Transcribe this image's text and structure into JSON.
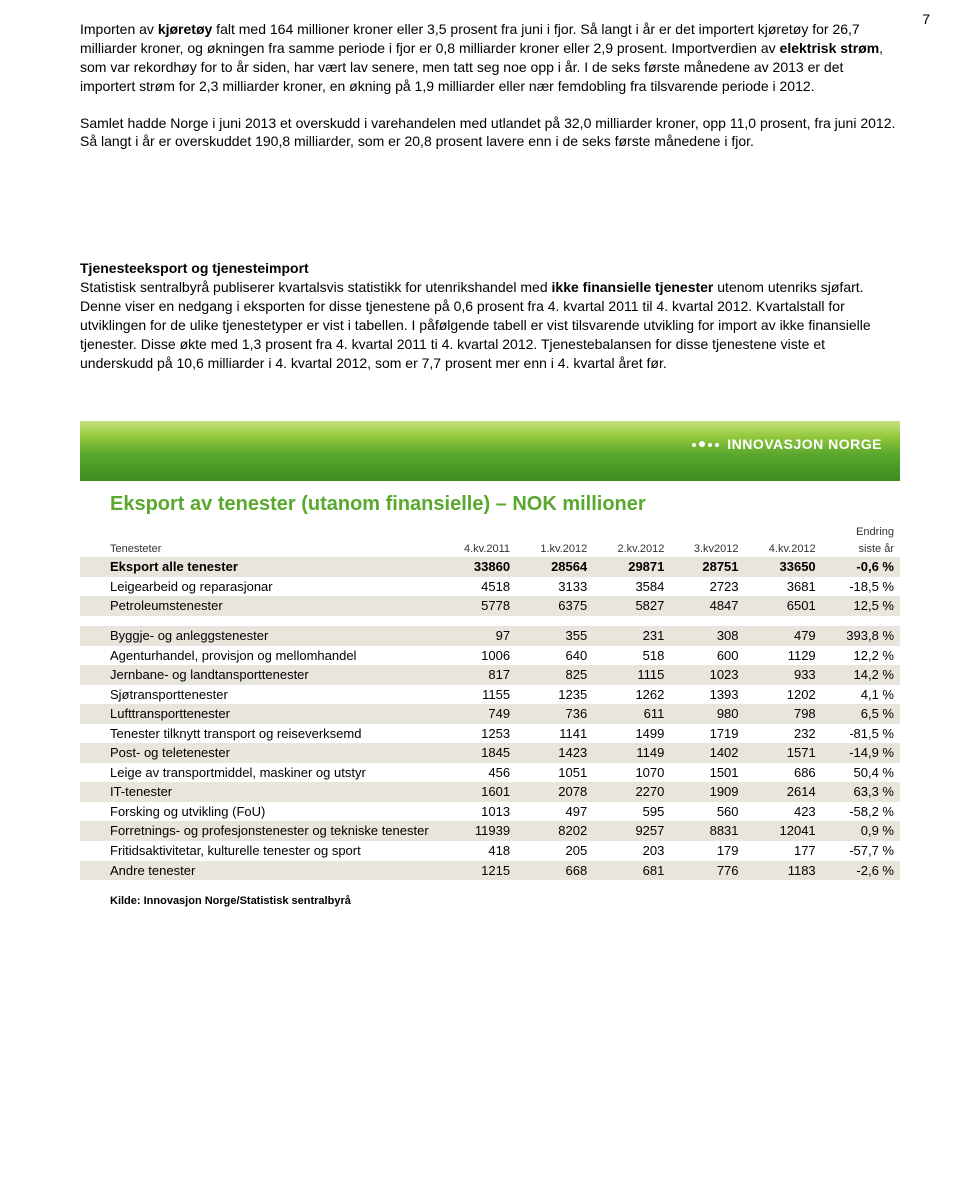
{
  "page_number": "7",
  "paragraphs": {
    "p1_a": "Importen av ",
    "p1_b": "kjøretøy",
    "p1_c": " falt med 164 millioner kroner eller 3,5 prosent fra juni i fjor. Så langt i år er det importert kjøretøy for 26,7 milliarder kroner, og økningen fra samme periode i fjor er 0,8 milliarder kroner eller 2,9 prosent.",
    "p1_d": " Importverdien av ",
    "p1_e": "elektrisk strøm",
    "p1_f": ", som var rekordhøy for to år siden, har vært lav senere, men tatt seg noe opp i år. I de seks første månedene av 2013 er det importert strøm for 2,3 milliarder kroner, en økning på 1,9 milliarder eller nær femdobling fra tilsvarende periode i 2012.",
    "p2": "Samlet hadde Norge i juni 2013 et overskudd i varehandelen med utlandet på 32,0 milliarder kroner, opp 11,0 prosent, fra juni 2012. Så langt i år er overskuddet 190,8 milliarder, som er 20,8 prosent lavere enn i de seks første månedene i fjor.",
    "p3_title": "Tjenesteeksport og tjenesteimport",
    "p3_a": "Statistisk sentralbyrå publiserer kvartalsvis statistikk for utenrikshandel med ",
    "p3_b": "ikke finansielle tjenester",
    "p3_c": " utenom utenriks sjøfart. Denne viser en nedgang i eksporten for disse tjenestene på 0,6 prosent fra 4. kvartal 2011 til 4. kvartal 2012. Kvartalstall for utviklingen for de ulike tjenestetyper er vist i tabellen. I påfølgende tabell er vist tilsvarende utvikling for import av ikke finansielle tjenester. Disse økte med 1,3 prosent fra 4. kvartal 2011 ti 4. kvartal 2012. Tjenestebalansen for disse tjenestene viste et underskudd på 10,6 milliarder i 4. kvartal 2012, som er 7,7 prosent mer enn i 4. kvartal året før."
  },
  "banner_logo": "INNOVASJON NORGE",
  "table": {
    "title": "Eksport av tenester (utanom finansielle) – NOK millioner",
    "header_left": "Tenesteter",
    "header_cols": [
      "4.kv.2011",
      "1.kv.2012",
      "2.kv.2012",
      "3.kv2012",
      "4.kv.2012"
    ],
    "header_change_top": "Endring",
    "header_change_bottom": "siste år",
    "rows": [
      {
        "label": "Eksport alle tenester",
        "v": [
          "33860",
          "28564",
          "29871",
          "28751",
          "33650",
          "-0,6 %"
        ],
        "bold": true,
        "shade": true
      },
      {
        "label": "Leigearbeid og reparasjonar",
        "v": [
          "4518",
          "3133",
          "3584",
          "2723",
          "3681",
          "-18,5 %"
        ],
        "bold": false,
        "shade": false
      },
      {
        "label": "Petroleumstenester",
        "v": [
          "5778",
          "6375",
          "5827",
          "4847",
          "6501",
          "12,5 %"
        ],
        "bold": false,
        "shade": true
      },
      {
        "spacer": true
      },
      {
        "label": "Byggje- og anleggstenester",
        "v": [
          "97",
          "355",
          "231",
          "308",
          "479",
          "393,8 %"
        ],
        "bold": false,
        "shade": true
      },
      {
        "label": "Agenturhandel, provisjon og mellomhandel",
        "v": [
          "1006",
          "640",
          "518",
          "600",
          "1129",
          "12,2 %"
        ],
        "bold": false,
        "shade": false
      },
      {
        "label": "Jernbane- og landtansporttenester",
        "v": [
          "817",
          "825",
          "1115",
          "1023",
          "933",
          "14,2 %"
        ],
        "bold": false,
        "shade": true
      },
      {
        "label": "Sjøtransporttenester",
        "v": [
          "1155",
          "1235",
          "1262",
          "1393",
          "1202",
          "4,1 %"
        ],
        "bold": false,
        "shade": false
      },
      {
        "label": "Lufttransporttenester",
        "v": [
          "749",
          "736",
          "611",
          "980",
          "798",
          "6,5 %"
        ],
        "bold": false,
        "shade": true
      },
      {
        "label": "Tenester tilknytt transport og reiseverksemd",
        "v": [
          "1253",
          "1141",
          "1499",
          "1719",
          "232",
          "-81,5 %"
        ],
        "bold": false,
        "shade": false
      },
      {
        "label": "Post- og teletenester",
        "v": [
          "1845",
          "1423",
          "1149",
          "1402",
          "1571",
          "-14,9 %"
        ],
        "bold": false,
        "shade": true
      },
      {
        "label": "Leige av transportmiddel, maskiner og utstyr",
        "v": [
          "456",
          "1051",
          "1070",
          "1501",
          "686",
          "50,4 %"
        ],
        "bold": false,
        "shade": false
      },
      {
        "label": "IT-tenester",
        "v": [
          "1601",
          "2078",
          "2270",
          "1909",
          "2614",
          "63,3 %"
        ],
        "bold": false,
        "shade": true
      },
      {
        "label": "Forsking og utvikling (FoU)",
        "v": [
          "1013",
          "497",
          "595",
          "560",
          "423",
          "-58,2 %"
        ],
        "bold": false,
        "shade": false
      },
      {
        "label": "Forretnings- og profesjonstenester og tekniske tenester",
        "v": [
          "11939",
          "8202",
          "9257",
          "8831",
          "12041",
          "0,9 %"
        ],
        "bold": false,
        "shade": true
      },
      {
        "label": "Fritidsaktivitetar, kulturelle tenester og sport",
        "v": [
          "418",
          "205",
          "203",
          "179",
          "177",
          "-57,7 %"
        ],
        "bold": false,
        "shade": false
      },
      {
        "label": "Andre tenester",
        "v": [
          "1215",
          "668",
          "681",
          "776",
          "1183",
          "-2,6 %"
        ],
        "bold": false,
        "shade": true
      }
    ],
    "source": "Kilde: Innovasjon Norge/Statistisk sentralbyrå"
  },
  "colors": {
    "accent_green": "#5aa82e",
    "shade_bg": "#e8e5dc"
  }
}
